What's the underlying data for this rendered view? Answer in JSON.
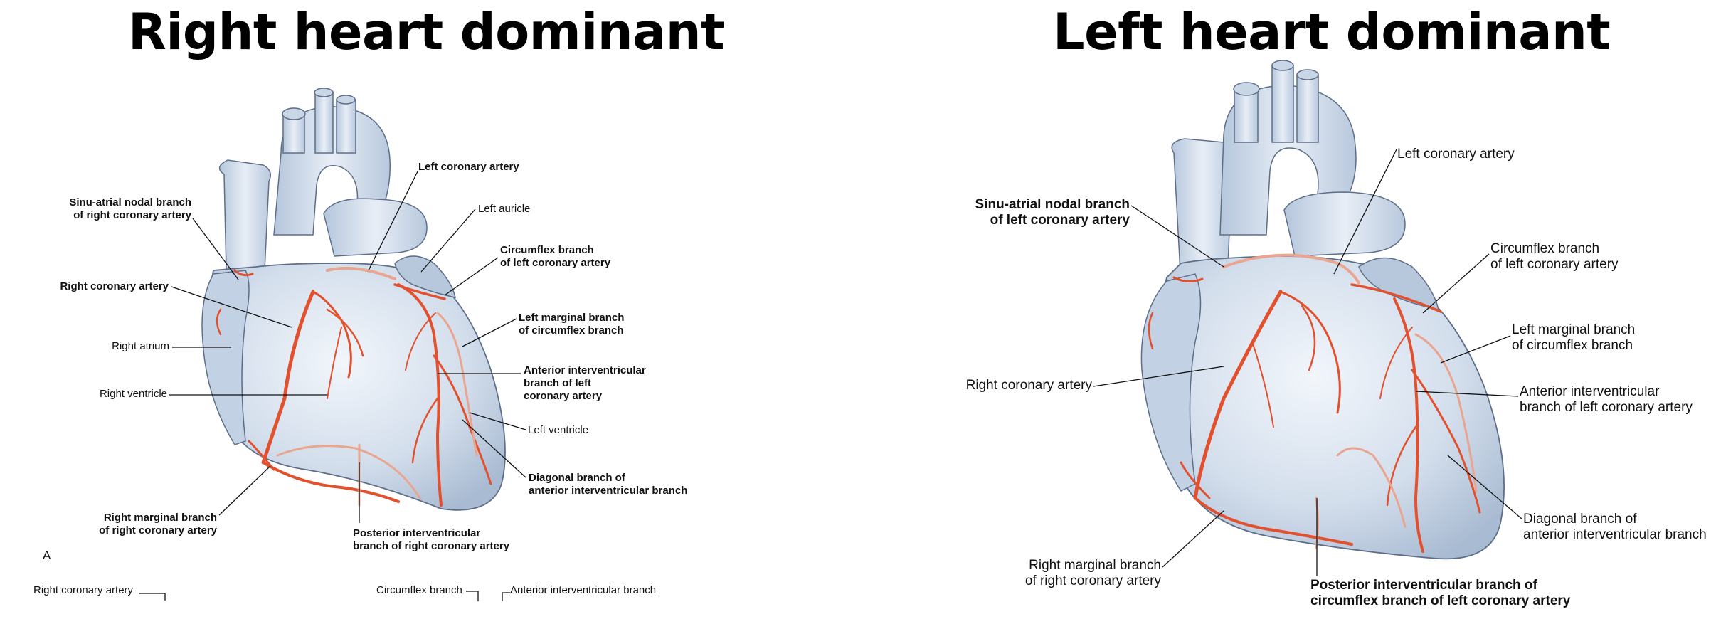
{
  "titles": {
    "left": "Right heart dominant",
    "right": "Left heart dominant"
  },
  "left_diagram": {
    "panel_letter": "A",
    "labels": {
      "left_coronary_artery": "Left coronary artery",
      "left_auricle": "Left auricle",
      "sa_nodal_1": "Sinu-atrial nodal branch",
      "sa_nodal_2": "of right coronary artery",
      "circumflex_1": "Circumflex branch",
      "circumflex_2": "of left coronary artery",
      "right_coronary_artery": "Right coronary artery",
      "left_marginal_1": "Left marginal branch",
      "left_marginal_2": "of circumflex branch",
      "right_atrium": "Right atrium",
      "anterior_iv_1": "Anterior interventricular",
      "anterior_iv_2": "branch of left",
      "anterior_iv_3": "coronary artery",
      "right_ventricle": "Right ventricle",
      "left_ventricle": "Left ventricle",
      "diagonal_1": "Diagonal branch of",
      "diagonal_2": "anterior interventricular branch",
      "right_marginal_1": "Right marginal branch",
      "right_marginal_2": "of right coronary artery",
      "posterior_iv_1": "Posterior interventricular",
      "posterior_iv_2": "branch of right coronary artery"
    },
    "bottom_strip": {
      "right_coronary_artery": "Right coronary artery",
      "circumflex_branch": "Circumflex branch",
      "anterior_iv_branch": "Anterior interventricular branch"
    }
  },
  "right_diagram": {
    "labels": {
      "left_coronary_artery": "Left coronary artery",
      "sa_nodal_1": "Sinu-atrial nodal branch",
      "sa_nodal_2": "of left coronary artery",
      "circumflex_1": "Circumflex branch",
      "circumflex_2": "of left coronary artery",
      "left_marginal_1": "Left marginal branch",
      "left_marginal_2": "of circumflex branch",
      "right_coronary_artery": "Right coronary artery",
      "anterior_iv_1": "Anterior interventricular",
      "anterior_iv_2": "branch of left coronary artery",
      "diagonal_1": "Diagonal branch of",
      "diagonal_2": "anterior interventricular branch",
      "right_marginal_1": "Right marginal branch",
      "right_marginal_2": "of right coronary artery",
      "posterior_iv_1": "Posterior interventricular branch of",
      "posterior_iv_2": "circumflex branch of left coronary artery"
    }
  },
  "colors": {
    "heart_fill": "#d6e1ee",
    "heart_highlight": "#eef3f9",
    "heart_outline": "#5d6f88",
    "artery": "#e2502e",
    "artery_faint": "#e9a58f",
    "leader": "#111111"
  }
}
